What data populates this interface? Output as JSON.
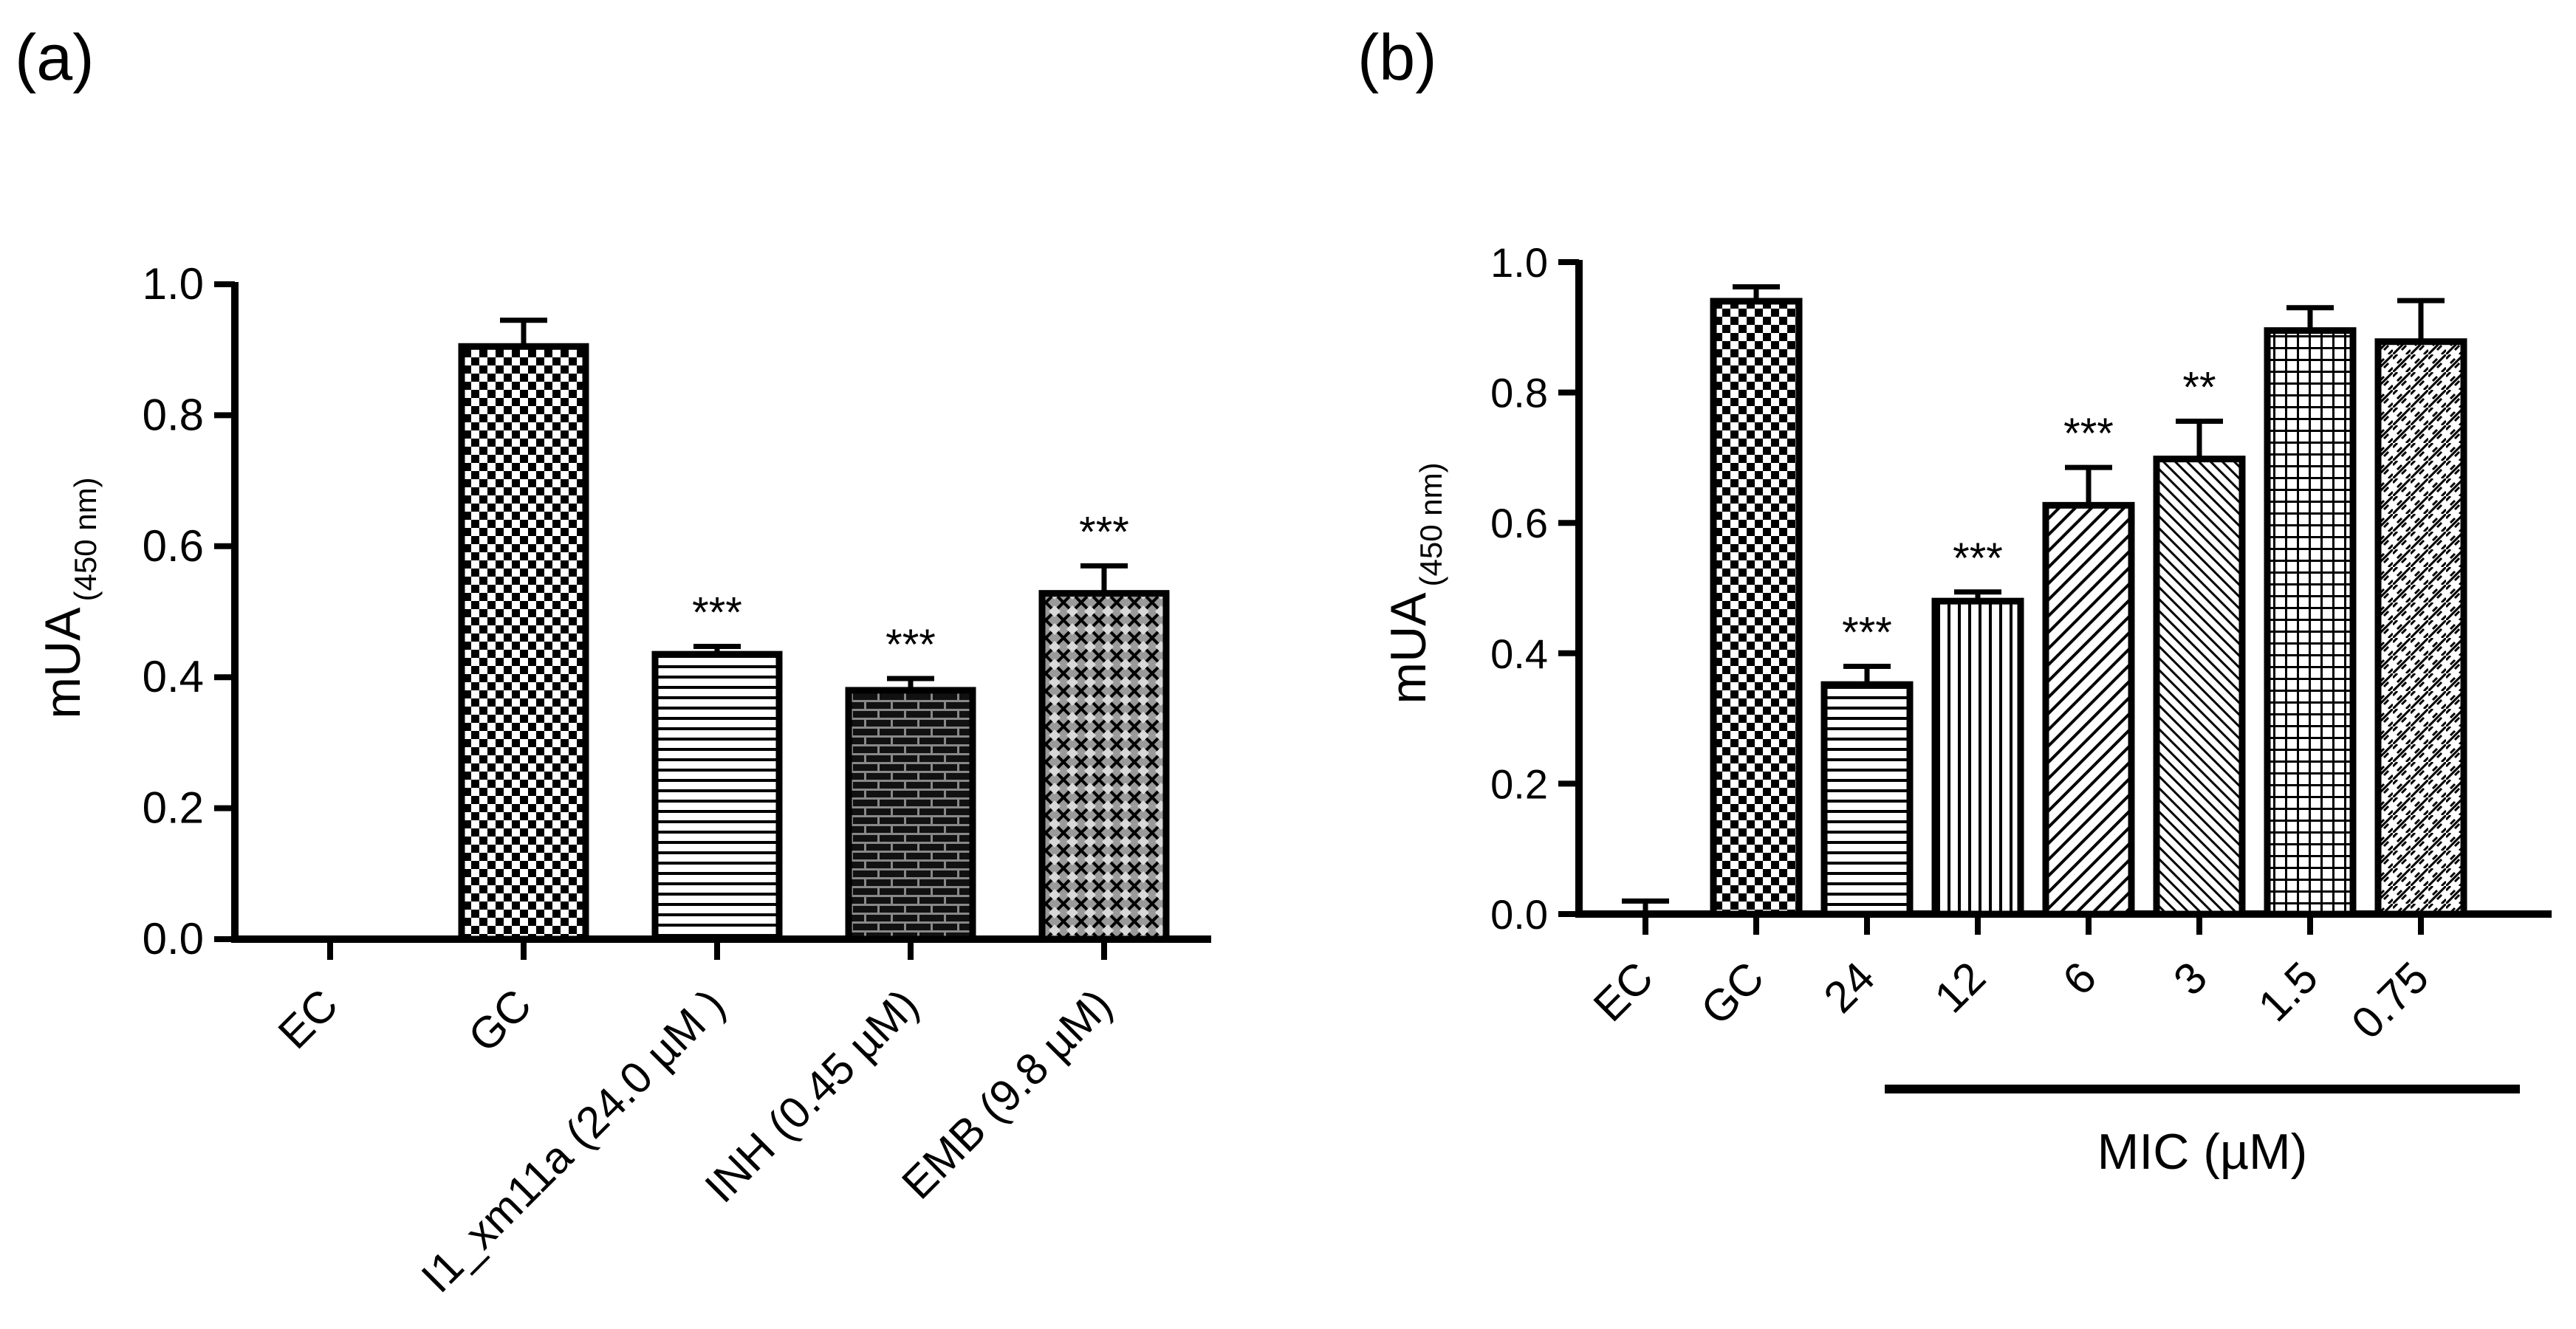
{
  "panels": {
    "a": {
      "label": "(a)"
    },
    "b": {
      "label": "(b)"
    }
  },
  "chart_data": [
    {
      "id": "a",
      "type": "bar",
      "title": "",
      "ylabel_main": "mUA",
      "ylabel_sub": "(450 nm)",
      "xlabel": "",
      "ylim": [
        0.0,
        1.0
      ],
      "yticks": [
        "0.0",
        "0.2",
        "0.4",
        "0.6",
        "0.8",
        "1.0"
      ],
      "categories": [
        "EC",
        "GC",
        "I1_xm11a (24.0 µM )",
        "INH (0.45 µM)",
        "EMB (9.8 µM)"
      ],
      "values": [
        0.0,
        0.905,
        0.435,
        0.38,
        0.528
      ],
      "errors": [
        0.0,
        0.04,
        0.012,
        0.018,
        0.042
      ],
      "patterns": [
        "none",
        "checker",
        "hlines",
        "brick",
        "diamond"
      ],
      "significance": [
        "",
        "",
        "***",
        "***",
        "***"
      ]
    },
    {
      "id": "b",
      "type": "bar",
      "title": "",
      "ylabel_main": "mUA",
      "ylabel_sub": "(450 nm)",
      "xlabel": "MIC  (µM)",
      "ylim": [
        0.0,
        1.0
      ],
      "yticks": [
        "0.0",
        "0.2",
        "0.4",
        "0.6",
        "0.8",
        "1.0"
      ],
      "categories": [
        "EC",
        "GC",
        "24",
        "12",
        "6",
        "3",
        "1.5",
        "0.75"
      ],
      "values": [
        0.0,
        0.94,
        0.352,
        0.48,
        0.627,
        0.698,
        0.895,
        0.878
      ],
      "errors": [
        0.02,
        0.022,
        0.028,
        0.014,
        0.058,
        0.058,
        0.035,
        0.063
      ],
      "patterns": [
        "none",
        "checker",
        "hlines",
        "vlines",
        "diag",
        "antidiag",
        "grid",
        "zigzag"
      ],
      "significance": [
        "",
        "",
        "***",
        "***",
        "***",
        "**",
        "",
        ""
      ]
    }
  ]
}
